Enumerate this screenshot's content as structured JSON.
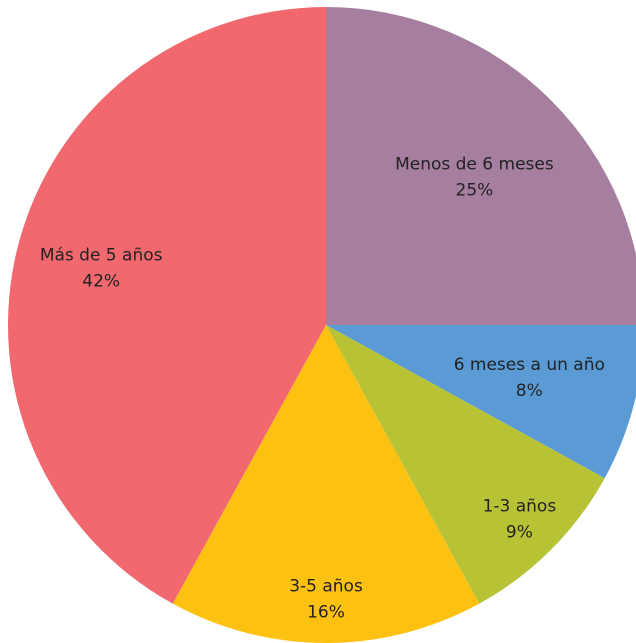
{
  "chart_data": {
    "type": "pie",
    "categories": [
      "Menos de 6 meses",
      "6 meses a un año",
      "1-3 años",
      "3-5 años",
      "Más de 5 años"
    ],
    "values": [
      25,
      8,
      9,
      16,
      42
    ],
    "value_labels": [
      "25%",
      "8%",
      "9%",
      "16%",
      "42%"
    ],
    "colors": [
      "#a67fa0",
      "#5b9bd5",
      "#b7c335",
      "#fdc112",
      "#f2686f"
    ]
  }
}
